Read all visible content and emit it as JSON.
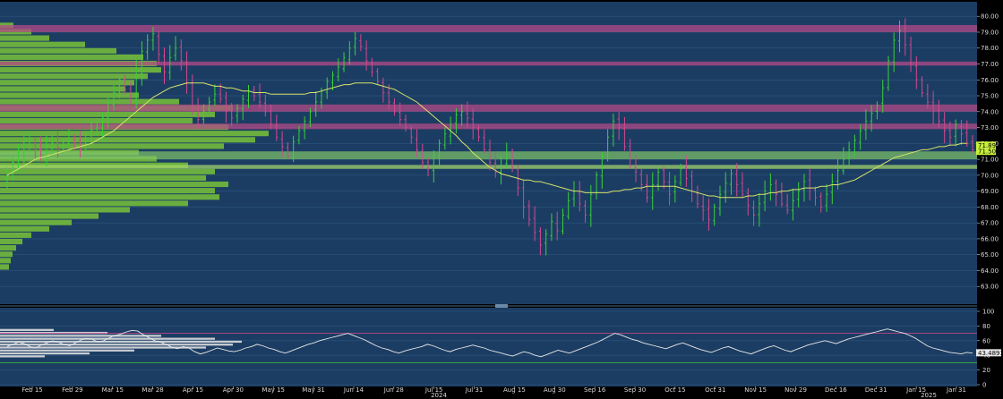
{
  "chart_data": [
    {
      "type": "candlestick",
      "title": "",
      "ylim": [
        62,
        80.8
      ],
      "yticks": [
        "63.00",
        "64.00",
        "65.00",
        "66.00",
        "67.00",
        "68.00",
        "69.00",
        "70.00",
        "71.00",
        "72.00",
        "73.00",
        "74.00",
        "75.00",
        "76.00",
        "77.00",
        "78.00",
        "79.00",
        "80.00"
      ],
      "ytick_values": [
        63,
        64,
        65,
        66,
        67,
        68,
        69,
        70,
        71,
        72,
        73,
        74,
        75,
        76,
        77,
        78,
        79,
        80
      ],
      "xlabels": [
        "Feb 15",
        "Feb 29",
        "Mar 15",
        "Mar 28",
        "Apr 15",
        "Apr 30",
        "May 15",
        "May 31",
        "Jun 14",
        "Jun 28",
        "Jul 15",
        "Jul 31",
        "Aug 15",
        "Aug 30",
        "Sep 16",
        "Sep 30",
        "Oct 15",
        "Oct 31",
        "Nov 15",
        "Nov 29",
        "Dec 16",
        "Dec 31",
        "Jan 15",
        "Jan 31"
      ],
      "year_labels": [
        "2024",
        "2025"
      ],
      "price_labels": [
        "71.89",
        "71.50"
      ],
      "price_label_values": [
        71.89,
        71.5
      ],
      "resistance_bands": [
        {
          "low": 79.0,
          "high": 79.45,
          "color": "#b24a86"
        },
        {
          "low": 76.9,
          "high": 77.15,
          "color": "#b24a86"
        },
        {
          "low": 74.0,
          "high": 74.45,
          "color": "#b24a86"
        },
        {
          "low": 72.9,
          "high": 73.25,
          "color": "#b24a86"
        }
      ],
      "support_bands": [
        {
          "low": 71.0,
          "high": 71.5,
          "color": "#7fc46a"
        },
        {
          "low": 70.4,
          "high": 70.65,
          "color": "#a8d96b"
        }
      ],
      "colors": {
        "up": "#38d138",
        "down": "#d1498f",
        "ma": "#d8e36b",
        "volume_profile": "#6fb43d",
        "background": "#1c3d63",
        "price_label": "#c8f03a"
      },
      "series": [
        {
          "name": "",
          "values": [
            70.2,
            70.8,
            71.4,
            71.9,
            72.1,
            71.6,
            71.3,
            71.8,
            72.0,
            71.7,
            71.9,
            72.3,
            72.0,
            71.6,
            72.2,
            72.8,
            73.0,
            73.6,
            74.5,
            75.2,
            76.0,
            75.4,
            75.0,
            76.5,
            77.8,
            78.5,
            78.9,
            77.6,
            76.5,
            77.4,
            78.0,
            77.2,
            75.8,
            74.2,
            73.5,
            74.0,
            74.6,
            75.1,
            74.8,
            74.0,
            73.6,
            74.2,
            74.8,
            75.3,
            75.0,
            74.6,
            74.0,
            73.2,
            72.4,
            71.8,
            71.2,
            72.1,
            72.8,
            73.4,
            74.0,
            74.6,
            75.3,
            75.9,
            76.3,
            76.8,
            77.4,
            78.0,
            78.6,
            78.1,
            77.2,
            76.5,
            75.9,
            75.2,
            74.6,
            74.0,
            73.5,
            73.0,
            72.4,
            71.6,
            70.8,
            70.4,
            71.2,
            72.0,
            72.6,
            73.2,
            73.8,
            74.0,
            73.6,
            73.0,
            72.4,
            71.6,
            70.8,
            70.2,
            70.6,
            71.3,
            70.5,
            69.2,
            68.0,
            67.2,
            66.4,
            65.6,
            66.3,
            67.1,
            66.5,
            67.5,
            68.4,
            69.0,
            68.2,
            67.5,
            68.8,
            70.0,
            71.2,
            72.4,
            73.4,
            73.0,
            71.8,
            70.6,
            70.2,
            69.4,
            68.6,
            69.4,
            70.2,
            69.6,
            68.8,
            69.6,
            70.4,
            69.8,
            69.0,
            68.2,
            67.8,
            67.2,
            68.0,
            68.8,
            69.5,
            70.1,
            69.4,
            68.8,
            68.1,
            67.5,
            68.2,
            69.0,
            69.4,
            68.8,
            68.2,
            67.8,
            68.4,
            69.0,
            69.6,
            69.2,
            68.6,
            68.0,
            68.8,
            69.6,
            70.3,
            71.0,
            71.6,
            72.2,
            72.8,
            73.4,
            73.9,
            74.4,
            75.5,
            77.2,
            78.5,
            79.1,
            78.2,
            77.0,
            76.0,
            75.2,
            74.6,
            74.0,
            73.4,
            72.8,
            72.4,
            73.2,
            72.6,
            72.0,
            71.6
          ]
        },
        {
          "name": "",
          "values": [
            70.0,
            70.2,
            70.4,
            70.6,
            70.8,
            71.0,
            71.1,
            71.2,
            71.3,
            71.4,
            71.5,
            71.6,
            71.7,
            71.8,
            71.9,
            72.0,
            72.2,
            72.4,
            72.6,
            72.8,
            73.1,
            73.4,
            73.7,
            74.0,
            74.3,
            74.6,
            74.9,
            75.1,
            75.3,
            75.5,
            75.6,
            75.7,
            75.8,
            75.8,
            75.8,
            75.8,
            75.7,
            75.6,
            75.6,
            75.5,
            75.5,
            75.4,
            75.3,
            75.3,
            75.2,
            75.2,
            75.2,
            75.1,
            75.1,
            75.1,
            75.1,
            75.1,
            75.1,
            75.1,
            75.2,
            75.2,
            75.3,
            75.4,
            75.5,
            75.6,
            75.7,
            75.7,
            75.8,
            75.8,
            75.8,
            75.8,
            75.7,
            75.6,
            75.5,
            75.4,
            75.2,
            75.0,
            74.8,
            74.6,
            74.3,
            74.0,
            73.7,
            73.4,
            73.1,
            72.8,
            72.5,
            72.1,
            71.8,
            71.4,
            71.1,
            70.8,
            70.5,
            70.3,
            70.1,
            70.0,
            69.9,
            69.8,
            69.7,
            69.7,
            69.6,
            69.6,
            69.5,
            69.4,
            69.3,
            69.2,
            69.1,
            69.0,
            69.0,
            68.9,
            68.9,
            68.9,
            68.9,
            68.9,
            69.0,
            69.0,
            69.1,
            69.1,
            69.2,
            69.2,
            69.3,
            69.3,
            69.3,
            69.3,
            69.3,
            69.3,
            69.2,
            69.1,
            69.0,
            68.9,
            68.8,
            68.7,
            68.7,
            68.6,
            68.6,
            68.6,
            68.6,
            68.6,
            68.7,
            68.7,
            68.8,
            68.8,
            68.9,
            68.9,
            69.0,
            69.0,
            69.1,
            69.1,
            69.2,
            69.2,
            69.2,
            69.3,
            69.3,
            69.4,
            69.4,
            69.5,
            69.6,
            69.7,
            69.9,
            70.1,
            70.3,
            70.5,
            70.7,
            70.9,
            71.1,
            71.2,
            71.3,
            71.4,
            71.5,
            71.6,
            71.6,
            71.7,
            71.8,
            71.8,
            71.9,
            71.9,
            72.0,
            72.0
          ]
        }
      ],
      "volume_profile": [
        {
          "price": 79.4,
          "volume": 15
        },
        {
          "price": 79.0,
          "volume": 35
        },
        {
          "price": 78.6,
          "volume": 55
        },
        {
          "price": 78.2,
          "volume": 95
        },
        {
          "price": 77.8,
          "volume": 130
        },
        {
          "price": 77.4,
          "volume": 160
        },
        {
          "price": 77.0,
          "volume": 175
        },
        {
          "price": 76.6,
          "volume": 180
        },
        {
          "price": 76.2,
          "volume": 165
        },
        {
          "price": 75.8,
          "volume": 150
        },
        {
          "price": 75.4,
          "volume": 140
        },
        {
          "price": 75.0,
          "volume": 155
        },
        {
          "price": 74.6,
          "volume": 200
        },
        {
          "price": 74.2,
          "volume": 260
        },
        {
          "price": 73.8,
          "volume": 240
        },
        {
          "price": 73.4,
          "volume": 215
        },
        {
          "price": 73.0,
          "volume": 255
        },
        {
          "price": 72.6,
          "volume": 300
        },
        {
          "price": 72.2,
          "volume": 285
        },
        {
          "price": 71.8,
          "volume": 250
        },
        {
          "price": 71.4,
          "volume": 155
        },
        {
          "price": 71.0,
          "volume": 175
        },
        {
          "price": 70.6,
          "volume": 210
        },
        {
          "price": 70.2,
          "volume": 240
        },
        {
          "price": 69.8,
          "volume": 230
        },
        {
          "price": 69.4,
          "volume": 255
        },
        {
          "price": 69.0,
          "volume": 240
        },
        {
          "price": 68.6,
          "volume": 245
        },
        {
          "price": 68.2,
          "volume": 210
        },
        {
          "price": 67.8,
          "volume": 145
        },
        {
          "price": 67.4,
          "volume": 110
        },
        {
          "price": 67.0,
          "volume": 80
        },
        {
          "price": 66.6,
          "volume": 55
        },
        {
          "price": 66.2,
          "volume": 35
        },
        {
          "price": 65.8,
          "volume": 25
        },
        {
          "price": 65.4,
          "volume": 18
        },
        {
          "price": 65.0,
          "volume": 14
        },
        {
          "price": 64.6,
          "volume": 12
        },
        {
          "price": 64.2,
          "volume": 10
        }
      ]
    },
    {
      "type": "line",
      "title": "",
      "ylim": [
        0,
        100
      ],
      "yticks": [
        "0",
        "20",
        "40",
        "60",
        "80",
        "100"
      ],
      "ytick_values": [
        0,
        20,
        40,
        60,
        80,
        100
      ],
      "overbought": 70,
      "oversold": 30,
      "current_label": "43.4891",
      "current_value": 43.4891,
      "colors": {
        "line": "#e8e8e8",
        "overbought": "#d1498f",
        "oversold": "#38c838",
        "background": "#1c3d63",
        "histogram": "#e6e6e6"
      },
      "series": [
        {
          "name": "",
          "values": [
            52,
            55,
            58,
            56,
            52,
            50,
            54,
            57,
            60,
            58,
            55,
            53,
            57,
            61,
            63,
            62,
            58,
            60,
            64,
            67,
            69,
            72,
            74,
            73,
            68,
            64,
            60,
            58,
            55,
            51,
            49,
            52,
            50,
            45,
            42,
            44,
            47,
            50,
            48,
            46,
            45,
            47,
            50,
            52,
            55,
            53,
            50,
            48,
            45,
            43,
            46,
            49,
            52,
            55,
            57,
            60,
            62,
            64,
            66,
            68,
            70,
            67,
            64,
            61,
            57,
            53,
            50,
            48,
            45,
            43,
            46,
            48,
            50,
            52,
            55,
            53,
            50,
            47,
            45,
            48,
            50,
            52,
            54,
            52,
            50,
            47,
            45,
            43,
            41,
            39,
            42,
            45,
            43,
            40,
            38,
            41,
            44,
            47,
            45,
            43,
            46,
            49,
            52,
            55,
            58,
            62,
            66,
            70,
            68,
            65,
            62,
            60,
            57,
            55,
            53,
            51,
            49,
            52,
            55,
            57,
            54,
            51,
            48,
            46,
            44,
            47,
            50,
            52,
            49,
            46,
            44,
            42,
            45,
            48,
            51,
            53,
            50,
            47,
            45,
            48,
            51,
            54,
            56,
            58,
            60,
            58,
            56,
            59,
            62,
            64,
            66,
            68,
            70,
            72,
            74,
            76,
            74,
            72,
            70,
            67,
            63,
            58,
            53,
            50,
            48,
            46,
            44,
            43,
            42,
            44,
            43
          ]
        }
      ],
      "histogram": [
        {
          "level": 74,
          "volume": 60
        },
        {
          "level": 70,
          "volume": 120
        },
        {
          "level": 66,
          "volume": 180
        },
        {
          "level": 62,
          "volume": 240
        },
        {
          "level": 58,
          "volume": 270
        },
        {
          "level": 54,
          "volume": 260
        },
        {
          "level": 50,
          "volume": 230
        },
        {
          "level": 46,
          "volume": 150
        },
        {
          "level": 42,
          "volume": 100
        },
        {
          "level": 38,
          "volume": 50
        }
      ]
    }
  ]
}
